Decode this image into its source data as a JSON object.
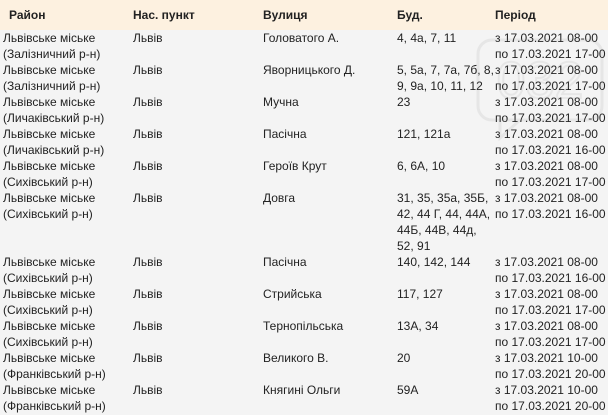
{
  "headers": [
    "Район",
    "Нас. пункт",
    "Вулиця",
    "Буд.",
    "Період"
  ],
  "rows": [
    {
      "district": "Львівське міське",
      "sub": "(Залізничний р-н)",
      "city": "Львів",
      "street": "Головатого А.",
      "houses": "4, 4а, 7, 11",
      "from": "з 17.03.2021 08-00",
      "to": "по 17.03.2021 17-00"
    },
    {
      "district": "Львівське міське",
      "sub": "(Залізничний р-н)",
      "city": "Львів",
      "street": "Яворницького Д.",
      "houses": "5, 5а, 7, 7а, 7б, 8, 9, 9а, 10, 11, 12",
      "from": "з 17.03.2021 08-00",
      "to": "по 17.03.2021 17-00"
    },
    {
      "district": "Львівське міське",
      "sub": "(Личаківський р-н)",
      "city": "Львів",
      "street": "Мучна",
      "houses": "23",
      "from": "з 17.03.2021 08-00",
      "to": "по 17.03.2021 17-00"
    },
    {
      "district": "Львівське міське",
      "sub": "(Личаківський р-н)",
      "city": "Львів",
      "street": "Пасічна",
      "houses": "121, 121а",
      "from": "з 17.03.2021 08-00",
      "to": "по 17.03.2021 16-00"
    },
    {
      "district": "Львівське міське",
      "sub": "(Сихівський р-н)",
      "city": "Львів",
      "street": "Героїв Крут",
      "houses": "6, 6А, 10",
      "from": "з 17.03.2021 08-00",
      "to": "по 17.03.2021 17-00"
    },
    {
      "district": "Львівське міське",
      "sub": "(Сихівський р-н)",
      "city": "Львів",
      "street": "Довга",
      "houses": "31, 35, 35а, 35Б, 42, 44 Г, 44, 44А, 44Б, 44В, 44д, 52, 91",
      "from": "з 17.03.2021 08-00",
      "to": "по 17.03.2021 16-00"
    },
    {
      "district": "Львівське міське",
      "sub": "(Сихівський р-н)",
      "city": "Львів",
      "street": "Пасічна",
      "houses": "140, 142, 144",
      "from": "з 17.03.2021 08-00",
      "to": "по 17.03.2021 16-00"
    },
    {
      "district": "Львівське міське",
      "sub": "(Сихівський р-н)",
      "city": "Львів",
      "street": "Стрийська",
      "houses": "117, 127",
      "from": "з 17.03.2021 08-00",
      "to": "по 17.03.2021 17-00"
    },
    {
      "district": "Львівське міське",
      "sub": "(Сихівський р-н)",
      "city": "Львів",
      "street": "Тернопільська",
      "houses": "13А, 34",
      "from": "з 17.03.2021 08-00",
      "to": "по 17.03.2021 17-00"
    },
    {
      "district": "Львівське міське",
      "sub": "(Франківський р-н)",
      "city": "Львів",
      "street": "Великого В.",
      "houses": "20",
      "from": "з 17.03.2021 10-00",
      "to": "по 17.03.2021 20-00"
    },
    {
      "district": "Львівське міське",
      "sub": "(Франківський р-н)",
      "city": "Львів",
      "street": "Княгині Ольги",
      "houses": "59А",
      "from": "з 17.03.2021 10-00",
      "to": "по 17.03.2021 20-00"
    }
  ],
  "watermark": {
    "text": "032",
    "color": "#888888"
  },
  "colors": {
    "header_bg": "#fdf1e0",
    "body_bg": "#f4f4f4"
  }
}
